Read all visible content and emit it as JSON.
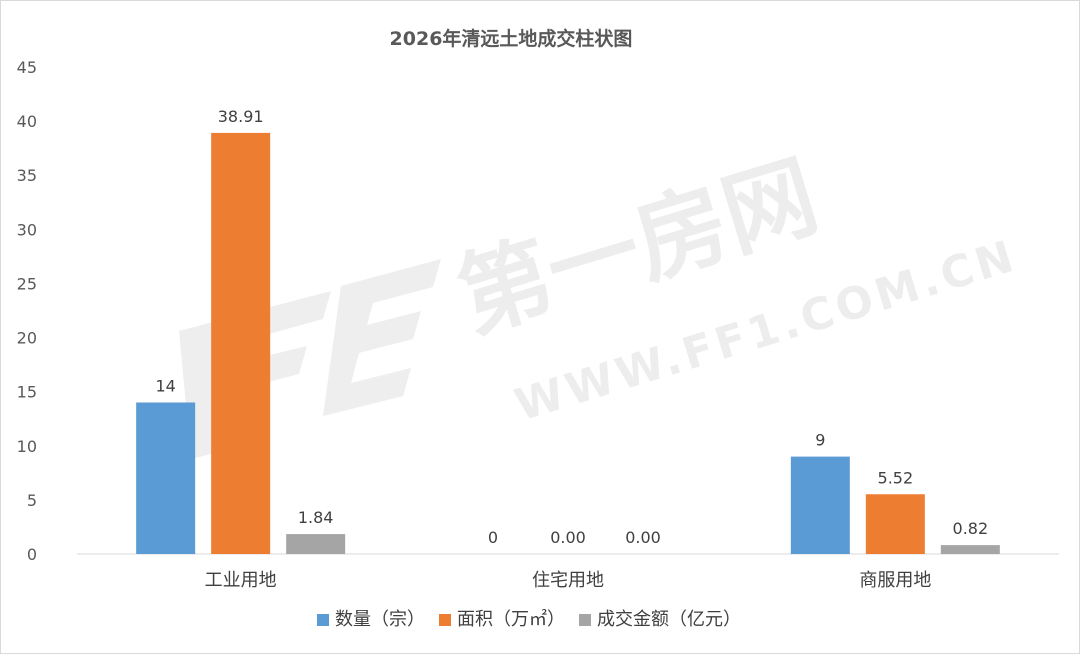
{
  "chart_data": {
    "type": "bar",
    "title": "2026年清远土地成交柱状图",
    "categories": [
      "工业用地",
      "住宅用地",
      "商服用地"
    ],
    "series": [
      {
        "name": "数量（宗）",
        "color": "#5b9bd5",
        "values": [
          14,
          0,
          9
        ],
        "labels": [
          "14",
          "0",
          "9"
        ]
      },
      {
        "name": "面积（万㎡）",
        "color": "#ed7d31",
        "values": [
          38.91,
          0,
          5.52
        ],
        "labels": [
          "38.91",
          "0.00",
          "5.52"
        ]
      },
      {
        "name": "成交金额（亿元）",
        "color": "#a5a5a5",
        "values": [
          1.84,
          0,
          0.82
        ],
        "labels": [
          "1.84",
          "0.00",
          "0.82"
        ]
      }
    ],
    "yticks": [
      0,
      5,
      10,
      15,
      20,
      25,
      30,
      35,
      40,
      45
    ],
    "ylim": [
      0,
      45
    ],
    "xlabel": "",
    "ylabel": "",
    "grid": false,
    "legend": "bottom"
  },
  "watermark": {
    "main": "第一房网",
    "url": "WWW.FF1.COM.CN",
    "color": "#efefef"
  }
}
